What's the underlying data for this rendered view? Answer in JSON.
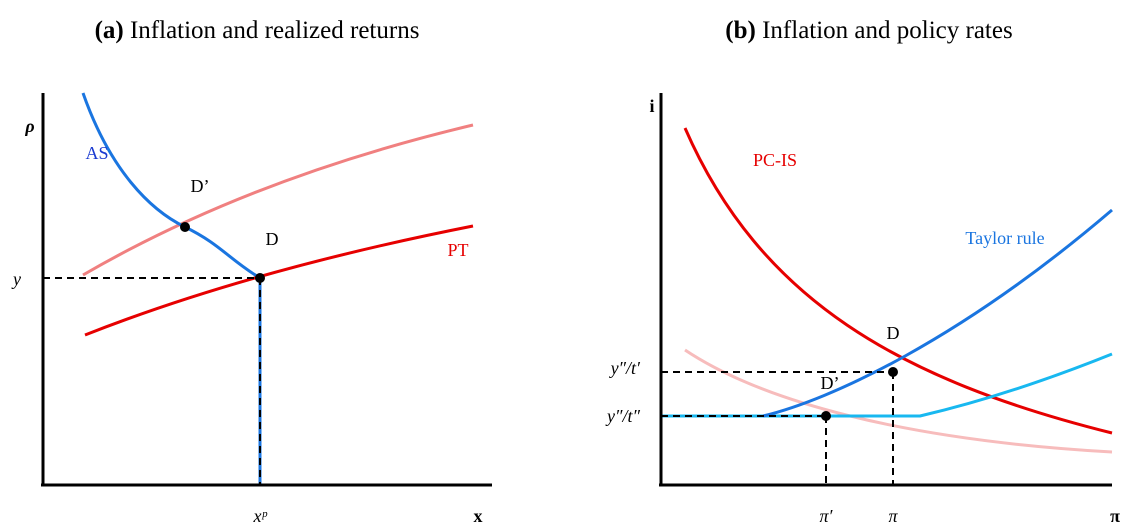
{
  "panels": [
    {
      "title": {
        "tag": "(a)",
        "text": "Inflation and realized returns"
      },
      "y_axis_label": "ρ",
      "x_axis_label": "x",
      "curves": [
        {
          "label": "AS"
        },
        {
          "label": "PT"
        }
      ],
      "points": [
        {
          "label": "D’"
        },
        {
          "label": "D"
        }
      ],
      "y_tick_labels": [
        "y"
      ],
      "x_tick_labels": [
        "xᵖ"
      ]
    },
    {
      "title": {
        "tag": "(b)",
        "text": "Inflation and policy rates"
      },
      "y_axis_label": "i",
      "x_axis_label": "π",
      "curves": [
        {
          "label": "PC-IS"
        },
        {
          "label": "Taylor rule"
        }
      ],
      "points": [
        {
          "label": "D"
        },
        {
          "label": "D’"
        }
      ],
      "y_tick_labels": [
        "y″/t′",
        "y″/t″"
      ],
      "x_tick_labels": [
        "π′",
        "π"
      ]
    }
  ]
}
